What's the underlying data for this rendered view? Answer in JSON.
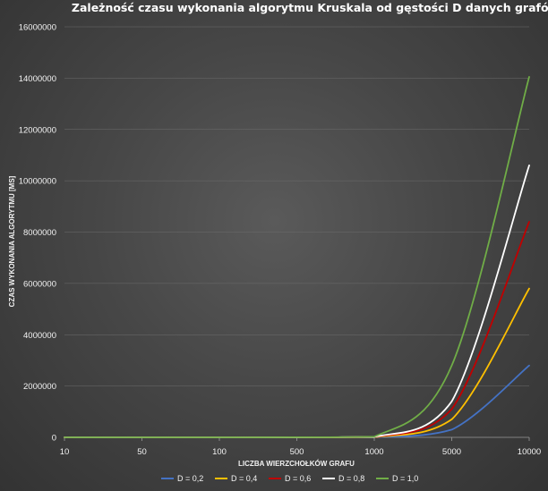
{
  "chart_data": {
    "type": "line",
    "title": "Zależność czasu wykonania algorytmu Kruskala od gęstości D danych grafów",
    "xlabel": "LICZBA WIERZCHOŁKÓW GRAFU",
    "ylabel": "CZAS WYKONANIA ALGORYTMU [MS]",
    "categories": [
      "10",
      "50",
      "100",
      "500",
      "1000",
      "5000",
      "10000"
    ],
    "ylim": [
      0,
      16000000
    ],
    "yticks": [
      "0",
      "2000000",
      "4000000",
      "6000000",
      "8000000",
      "10000000",
      "12000000",
      "14000000",
      "16000000"
    ],
    "grid": true,
    "legend_position": "bottom",
    "series": [
      {
        "name": "D = 0,2",
        "color": "#4472c4",
        "values": [
          0,
          0,
          0,
          500,
          3000,
          300000,
          2800000
        ]
      },
      {
        "name": "D = 0,4",
        "color": "#ffc000",
        "values": [
          0,
          0,
          0,
          1000,
          8000,
          700000,
          5800000
        ]
      },
      {
        "name": "D = 0,6",
        "color": "#c00000",
        "values": [
          0,
          0,
          0,
          1500,
          12000,
          1100000,
          8400000
        ]
      },
      {
        "name": "D = 0,8",
        "color": "#ffffff",
        "values": [
          0,
          0,
          0,
          2000,
          16000,
          1400000,
          10600000
        ]
      },
      {
        "name": "D = 1,0",
        "color": "#70ad47",
        "values": [
          0,
          0,
          0,
          3000,
          25000,
          2800000,
          14050000
        ]
      }
    ]
  }
}
